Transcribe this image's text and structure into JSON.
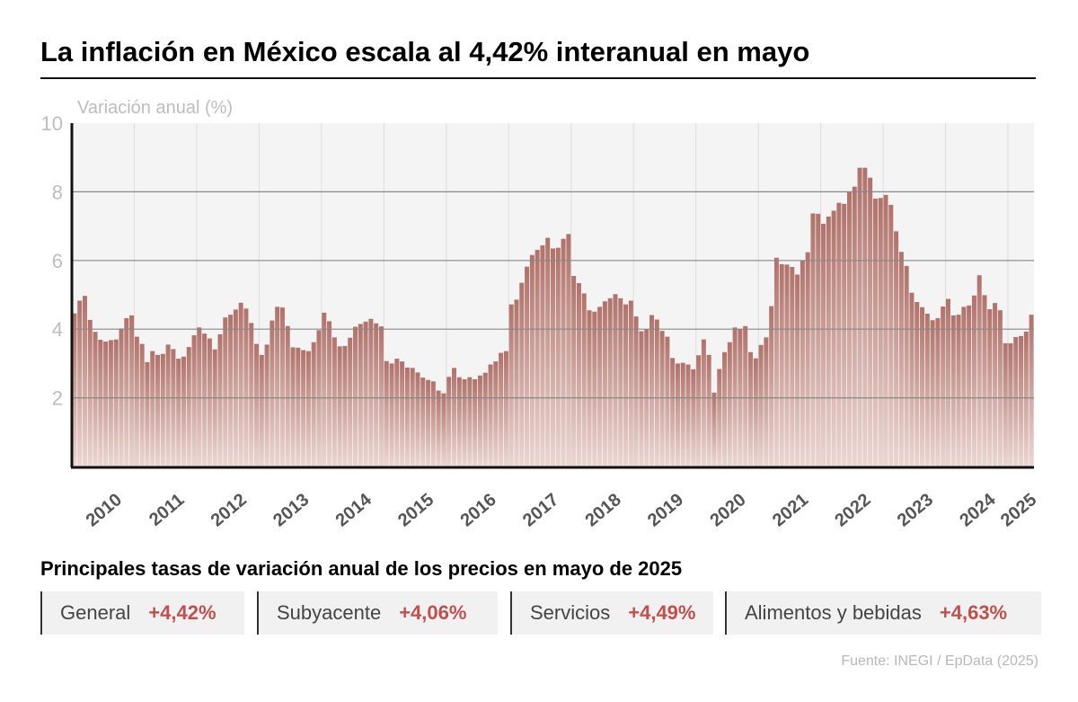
{
  "header": {
    "title": "La inflación en México escala al 4,42% interanual en mayo"
  },
  "chart_data": {
    "type": "bar",
    "title": "La inflación en México escala al 4,42% interanual en mayo",
    "ylabel": "Variación anual (%)",
    "xlabel": "",
    "ylim": [
      0,
      10
    ],
    "yticks": [
      2,
      4,
      6,
      8,
      10
    ],
    "year_labels": [
      "2010",
      "2011",
      "2012",
      "2013",
      "2014",
      "2015",
      "2016",
      "2017",
      "2018",
      "2019",
      "2020",
      "2021",
      "2022",
      "2023",
      "2024",
      "2025"
    ],
    "x_start": "2010-01",
    "x_end": "2025-05",
    "grid": true,
    "colors": {
      "bar_top": "#b0726a",
      "bar_bottom": "#ecd6d2",
      "plot_bg": "#f4f4f4",
      "grid": "#888888",
      "axis": "#111111",
      "tick_text": "#bdbdbd",
      "year_text": "#555555"
    },
    "values": [
      4.46,
      4.83,
      4.97,
      4.27,
      3.92,
      3.69,
      3.64,
      3.68,
      3.7,
      4.02,
      4.32,
      4.4,
      3.78,
      3.57,
      3.04,
      3.36,
      3.25,
      3.28,
      3.55,
      3.42,
      3.14,
      3.2,
      3.48,
      3.82,
      4.05,
      3.87,
      3.73,
      3.41,
      3.85,
      4.34,
      4.42,
      4.57,
      4.77,
      4.6,
      4.18,
      3.57,
      3.25,
      3.55,
      4.25,
      4.65,
      4.63,
      4.09,
      3.47,
      3.46,
      3.39,
      3.36,
      3.62,
      3.97,
      4.48,
      4.23,
      3.76,
      3.5,
      3.51,
      3.75,
      4.07,
      4.15,
      4.22,
      4.3,
      4.17,
      4.08,
      3.07,
      3.0,
      3.14,
      3.06,
      2.88,
      2.87,
      2.74,
      2.59,
      2.52,
      2.48,
      2.21,
      2.13,
      2.61,
      2.87,
      2.6,
      2.54,
      2.6,
      2.54,
      2.65,
      2.73,
      2.97,
      3.06,
      3.31,
      3.36,
      4.72,
      4.86,
      5.35,
      5.82,
      6.16,
      6.31,
      6.44,
      6.66,
      6.35,
      6.37,
      6.63,
      6.77,
      5.55,
      5.34,
      5.04,
      4.55,
      4.51,
      4.65,
      4.81,
      4.9,
      5.02,
      4.9,
      4.72,
      4.83,
      4.37,
      3.94,
      4.0,
      4.41,
      4.28,
      3.95,
      3.78,
      3.16,
      3.0,
      3.02,
      2.97,
      2.83,
      3.24,
      3.7,
      3.25,
      2.15,
      2.84,
      3.33,
      3.62,
      4.05,
      4.01,
      4.09,
      3.33,
      3.15,
      3.54,
      3.76,
      4.67,
      6.08,
      5.89,
      5.88,
      5.81,
      5.59,
      6.0,
      6.24,
      7.37,
      7.36,
      7.07,
      7.28,
      7.45,
      7.68,
      7.65,
      7.99,
      8.15,
      8.7,
      8.7,
      8.41,
      7.8,
      7.82,
      7.91,
      7.62,
      6.85,
      6.25,
      5.84,
      5.06,
      4.79,
      4.64,
      4.45,
      4.26,
      4.32,
      4.66,
      4.88,
      4.4,
      4.42,
      4.65,
      4.69,
      4.98,
      5.57,
      4.99,
      4.58,
      4.76,
      4.55,
      3.59,
      3.59,
      3.77,
      3.8,
      3.93,
      4.42
    ]
  },
  "rates": {
    "title": "Principales tasas de variación anual de los precios en mayo de 2025",
    "items": [
      {
        "label": "General",
        "value": "+4,42%"
      },
      {
        "label": "Subyacente",
        "value": "+4,06%"
      },
      {
        "label": "Servicios",
        "value": "+4,49%"
      },
      {
        "label": "Alimentos y bebidas",
        "value": "+4,63%"
      }
    ]
  },
  "footer": {
    "source": "Fuente: INEGI / EpData (2025)"
  }
}
